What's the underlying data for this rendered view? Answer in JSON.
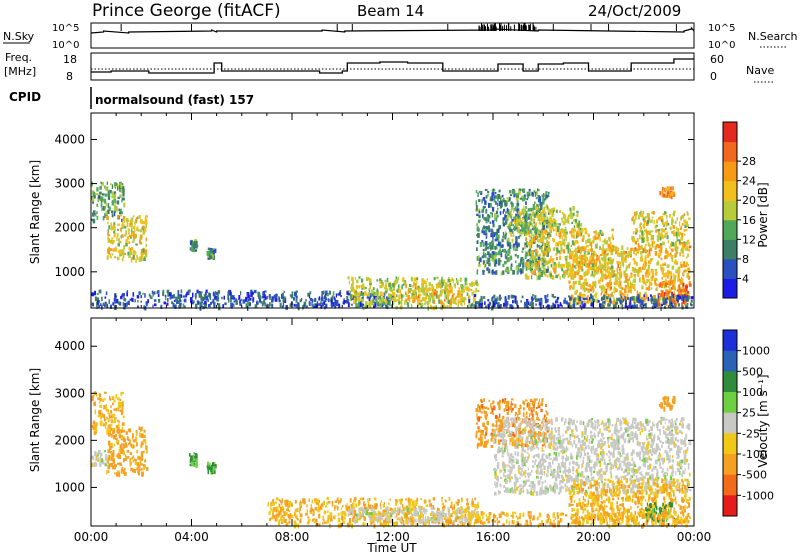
{
  "header": {
    "station": "Prince George (fitACF)",
    "beam": "Beam 14",
    "date": "24/Oct/2009"
  },
  "top_panel": {
    "left_label": "N.Sky",
    "right_label": "N.Search",
    "left_ticks": [
      "10^5",
      "10^0"
    ],
    "right_ticks": [
      "10^5",
      "10^0"
    ]
  },
  "freq_panel": {
    "left_label_1": "Freq.",
    "left_label_2": "[MHz]",
    "right_label": "Nave",
    "left_ticks": [
      "18",
      "8"
    ],
    "right_ticks": [
      "60",
      "0"
    ]
  },
  "cpid": {
    "label": "CPID",
    "program": "normalsound (fast) 157"
  },
  "chart_data": [
    {
      "type": "heatmap",
      "name": "power",
      "ylabel": "Slant Range [km]",
      "xlabel": "",
      "ylim": [
        180,
        4600
      ],
      "yticks": [
        "1000",
        "2000",
        "3000",
        "4000"
      ],
      "colorbar_label": "Power [dB]",
      "colorbar_ticks": [
        "4",
        "8",
        "12",
        "16",
        "20",
        "24",
        "28"
      ],
      "colors": [
        "#1c1ce6",
        "#2b50c0",
        "#3c7e66",
        "#52a85a",
        "#b8cc3a",
        "#f2c01c",
        "#f79a14",
        "#f2681e",
        "#e42a1e"
      ],
      "clusters": [
        {
          "t0": 0.0,
          "t1": 1.3,
          "r0": 2200,
          "r1": 3050,
          "p": 12
        },
        {
          "t0": 0.6,
          "t1": 2.2,
          "r0": 1300,
          "r1": 2300,
          "p": 18
        },
        {
          "t0": 3.9,
          "t1": 4.2,
          "r0": 1500,
          "r1": 1750,
          "p": 10
        },
        {
          "t0": 4.6,
          "t1": 4.9,
          "r0": 1350,
          "r1": 1550,
          "p": 10
        },
        {
          "t0": 0.0,
          "t1": 12.0,
          "r0": 180,
          "r1": 600,
          "p": 6
        },
        {
          "t0": 10.2,
          "t1": 15.4,
          "r0": 180,
          "r1": 900,
          "p": 16
        },
        {
          "t0": 12.5,
          "t1": 14.8,
          "r0": 350,
          "r1": 750,
          "p": 20
        },
        {
          "t0": 15.3,
          "t1": 18.2,
          "r0": 1000,
          "r1": 2900,
          "p": 10
        },
        {
          "t0": 16.5,
          "t1": 19.5,
          "r0": 1900,
          "r1": 2500,
          "p": 16
        },
        {
          "t0": 17.2,
          "t1": 20.8,
          "r0": 900,
          "r1": 2000,
          "p": 18
        },
        {
          "t0": 19.0,
          "t1": 23.8,
          "r0": 300,
          "r1": 1600,
          "p": 20
        },
        {
          "t0": 22.5,
          "t1": 23.8,
          "r0": 300,
          "r1": 800,
          "p": 26
        },
        {
          "t0": 21.5,
          "t1": 23.8,
          "r0": 1600,
          "r1": 2400,
          "p": 18
        },
        {
          "t0": 22.6,
          "t1": 23.2,
          "r0": 2700,
          "r1": 2950,
          "p": 24
        },
        {
          "t0": 15.0,
          "t1": 24.0,
          "r0": 180,
          "r1": 500,
          "p": 6
        }
      ]
    },
    {
      "type": "heatmap",
      "name": "velocity",
      "ylabel": "Slant Range [km]",
      "xlabel": "Time UT",
      "xlim": [
        0,
        24
      ],
      "xticks": [
        "00:00",
        "04:00",
        "08:00",
        "12:00",
        "16:00",
        "20:00",
        "00:00"
      ],
      "ylim": [
        180,
        4600
      ],
      "yticks": [
        "1000",
        "2000",
        "3000",
        "4000"
      ],
      "colorbar_label": "Velocity [m s⁻¹]",
      "colorbar_ticks": [
        "1000",
        "500",
        "100",
        "25",
        "-25",
        "-100",
        "-500",
        "-1000"
      ],
      "colors": [
        "#1c2fd8",
        "#2b62b8",
        "#2f8c3a",
        "#6ed040",
        "#c8c8c4",
        "#f2c818",
        "#f5a020",
        "#f26a1a",
        "#e61c1c"
      ],
      "clusters": [
        {
          "t0": 0.0,
          "t1": 1.3,
          "r0": 2200,
          "r1": 3050,
          "v": -100
        },
        {
          "t0": 0.6,
          "t1": 2.2,
          "r0": 1300,
          "r1": 2300,
          "v": -150
        },
        {
          "t0": 0.0,
          "t1": 0.6,
          "r0": 1500,
          "r1": 1800,
          "v": 0
        },
        {
          "t0": 3.9,
          "t1": 4.2,
          "r0": 1500,
          "r1": 1750,
          "v": 100
        },
        {
          "t0": 4.6,
          "t1": 4.9,
          "r0": 1350,
          "r1": 1550,
          "v": 100
        },
        {
          "t0": 7.0,
          "t1": 15.4,
          "r0": 180,
          "r1": 800,
          "v": -100
        },
        {
          "t0": 10.2,
          "t1": 15.4,
          "r0": 300,
          "r1": 600,
          "v": 0
        },
        {
          "t0": 15.3,
          "t1": 18.2,
          "r0": 1900,
          "r1": 2900,
          "v": -400
        },
        {
          "t0": 16.0,
          "t1": 23.8,
          "r0": 900,
          "r1": 2500,
          "v": 0
        },
        {
          "t0": 19.0,
          "t1": 23.8,
          "r0": 300,
          "r1": 1200,
          "v": -100
        },
        {
          "t0": 22.0,
          "t1": 23.2,
          "r0": 300,
          "r1": 700,
          "v": 150
        },
        {
          "t0": 22.6,
          "t1": 23.2,
          "r0": 2700,
          "r1": 2950,
          "v": -300
        },
        {
          "t0": 15.0,
          "t1": 24.0,
          "r0": 180,
          "r1": 500,
          "v": -100
        }
      ]
    }
  ]
}
